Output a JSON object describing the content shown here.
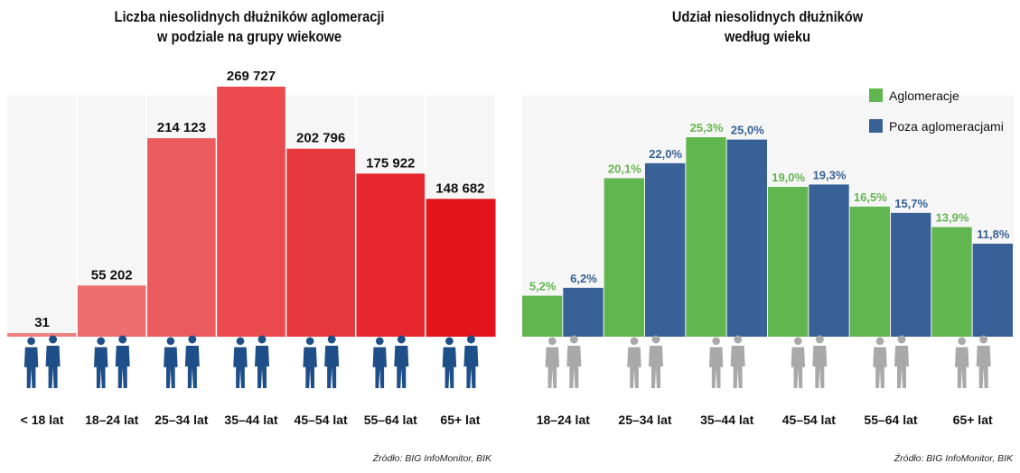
{
  "left_chart": {
    "title_line1": "Liczba niesolidnych dłużników aglomeracji",
    "title_line2": "w podziale na grupy wiekowe",
    "source": "Źródło: BIG InfoMonitor, BIK"
  },
  "right_chart": {
    "title_line1": "Udział niesolidnych dłużników",
    "title_line2": "według wieku",
    "source": "Źródło: BIG InfoMonitor, BIK"
  },
  "colors": {
    "left_bars_light": "#f08080",
    "left_bars_dark": "#e3141c",
    "green": "#62b64f",
    "blue": "#376197",
    "silhouette_left": "#1f4f88",
    "silhouette_right": "#a9a9a9"
  },
  "icons": {
    "left": "people-silhouette-icon",
    "right": "people-silhouette-icon"
  },
  "chart_data": [
    {
      "type": "bar",
      "title": "Liczba niesolidnych dłużników aglomeracji w podziale na grupy wiekowe",
      "categories": [
        "< 18 lat",
        "18–24 lat",
        "25–34 lat",
        "35–44 lat",
        "45–54 lat",
        "55–64 lat",
        "65+ lat"
      ],
      "values": [
        31,
        55202,
        214123,
        269727,
        202796,
        175922,
        148682
      ],
      "value_labels": [
        "31",
        "55 202",
        "214 123",
        "269 727",
        "202 796",
        "175 922",
        "148 682"
      ],
      "ylim": [
        0,
        269727
      ],
      "grid": false
    },
    {
      "type": "bar",
      "title": "Udział niesolidnych dłużników według wieku",
      "categories": [
        "18–24 lat",
        "25–34 lat",
        "35–44 lat",
        "45–54 lat",
        "55–64 lat",
        "65+ lat"
      ],
      "series": [
        {
          "name": "Aglomeracje",
          "values": [
            5.2,
            20.1,
            25.3,
            19.0,
            16.5,
            13.9
          ],
          "labels": [
            "5,2%",
            "20,1%",
            "25,3%",
            "19,0%",
            "16,5%",
            "13,9%"
          ]
        },
        {
          "name": "Poza aglomeracjami",
          "values": [
            6.2,
            22.0,
            25.0,
            19.3,
            15.7,
            11.8
          ],
          "labels": [
            "6,2%",
            "22,0%",
            "25,0%",
            "19,3%",
            "15,7%",
            "11,8%"
          ]
        }
      ],
      "ylim": [
        0,
        25.3
      ],
      "legend": "top-right",
      "grid": false
    }
  ]
}
